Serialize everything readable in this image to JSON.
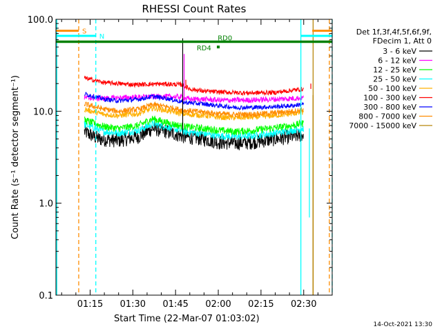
{
  "chart_data": {
    "type": "line",
    "title": "RHESSI Count Rates",
    "xlabel": "Start Time (22-Mar-07 01:03:02)",
    "ylabel": "Count Rate (s⁻¹ detector segment⁻¹)",
    "y_scale": "log",
    "ylim": [
      0.1,
      100
    ],
    "xlim": [
      "01:03",
      "02:40"
    ],
    "y_ticks": [
      {
        "value": 0.1,
        "label": "0.1"
      },
      {
        "value": 1.0,
        "label": "1.0"
      },
      {
        "value": 10.0,
        "label": "10.0"
      },
      {
        "value": 100.0,
        "label": "100.0"
      }
    ],
    "x_ticks": [
      {
        "minutes": 75,
        "label": "01:15"
      },
      {
        "minutes": 90,
        "label": "01:30"
      },
      {
        "minutes": 105,
        "label": "01:45"
      },
      {
        "minutes": 120,
        "label": "02:00"
      },
      {
        "minutes": 135,
        "label": "02:15"
      },
      {
        "minutes": 150,
        "label": "02:30"
      }
    ],
    "legend_header": [
      "Det 1f,3f,4f,5f,6f,9f,",
      "FDecim 1, Att 0"
    ],
    "legend_position": "right",
    "timestamp": "14-Oct-2021 13:30",
    "series": [
      {
        "name": "3 - 6 keV",
        "color": "#000000",
        "noise": 0.16,
        "points": [
          [
            73,
            6.0
          ],
          [
            78,
            5.0
          ],
          [
            85,
            4.8
          ],
          [
            92,
            5.3
          ],
          [
            97,
            6.5
          ],
          [
            102,
            6.0
          ],
          [
            108,
            5.3
          ],
          [
            115,
            5.0
          ],
          [
            120,
            4.6
          ],
          [
            126,
            4.5
          ],
          [
            132,
            4.6
          ],
          [
            140,
            5.0
          ],
          [
            146,
            5.3
          ],
          [
            150,
            5.6
          ]
        ]
      },
      {
        "name": "6 - 12 keV",
        "color": "#ff00ff",
        "noise": 0.06,
        "points": [
          [
            73,
            14.0
          ],
          [
            80,
            13.8
          ],
          [
            90,
            14.2
          ],
          [
            100,
            14.5
          ],
          [
            107,
            14.3
          ],
          [
            110,
            13.5
          ],
          [
            115,
            13.5
          ],
          [
            120,
            13.2
          ],
          [
            130,
            13.2
          ],
          [
            140,
            13.5
          ],
          [
            150,
            14.0
          ]
        ]
      },
      {
        "name": "12 - 25 keV",
        "color": "#00ff00",
        "noise": 0.08,
        "points": [
          [
            73,
            8.0
          ],
          [
            80,
            6.8
          ],
          [
            85,
            6.5
          ],
          [
            92,
            7.0
          ],
          [
            97,
            8.3
          ],
          [
            102,
            7.5
          ],
          [
            108,
            6.8
          ],
          [
            115,
            6.5
          ],
          [
            120,
            6.2
          ],
          [
            126,
            6.0
          ],
          [
            132,
            6.2
          ],
          [
            140,
            6.6
          ],
          [
            146,
            7.0
          ],
          [
            150,
            7.4
          ]
        ]
      },
      {
        "name": "25 - 50 keV",
        "color": "#00ffff",
        "noise": 0.08,
        "points": [
          [
            73,
            7.2
          ],
          [
            80,
            6.0
          ],
          [
            85,
            5.8
          ],
          [
            92,
            6.2
          ],
          [
            97,
            7.3
          ],
          [
            102,
            6.8
          ],
          [
            108,
            6.0
          ],
          [
            115,
            5.7
          ],
          [
            120,
            5.4
          ],
          [
            126,
            5.3
          ],
          [
            132,
            5.4
          ],
          [
            140,
            5.8
          ],
          [
            146,
            6.2
          ],
          [
            150,
            6.5
          ]
        ]
      },
      {
        "name": "50 - 100 keV",
        "color": "#ffb000",
        "noise": 0.06,
        "points": [
          [
            73,
            10.5
          ],
          [
            80,
            9.2
          ],
          [
            85,
            9.0
          ],
          [
            92,
            9.4
          ],
          [
            97,
            10.8
          ],
          [
            102,
            10.2
          ],
          [
            108,
            9.3
          ],
          [
            115,
            9.0
          ],
          [
            120,
            8.6
          ],
          [
            126,
            8.5
          ],
          [
            132,
            8.6
          ],
          [
            140,
            9.0
          ],
          [
            146,
            9.4
          ],
          [
            150,
            9.8
          ]
        ]
      },
      {
        "name": "100 - 300 keV",
        "color": "#ff0000",
        "noise": 0.05,
        "points": [
          [
            73,
            23.0
          ],
          [
            80,
            20.5
          ],
          [
            90,
            19.5
          ],
          [
            100,
            19.8
          ],
          [
            107,
            19.5
          ],
          [
            110,
            17.5
          ],
          [
            115,
            16.5
          ],
          [
            120,
            16.2
          ],
          [
            130,
            15.8
          ],
          [
            140,
            16.0
          ],
          [
            150,
            17.5
          ]
        ]
      },
      {
        "name": "300 - 800 keV",
        "color": "#0000ff",
        "noise": 0.05,
        "points": [
          [
            73,
            15.5
          ],
          [
            80,
            13.5
          ],
          [
            85,
            13.0
          ],
          [
            92,
            13.5
          ],
          [
            97,
            14.5
          ],
          [
            102,
            13.8
          ],
          [
            108,
            12.5
          ],
          [
            115,
            12.0
          ],
          [
            120,
            11.5
          ],
          [
            126,
            11.0
          ],
          [
            132,
            11.0
          ],
          [
            140,
            11.2
          ],
          [
            146,
            11.5
          ],
          [
            150,
            12.0
          ]
        ]
      },
      {
        "name": "800 - 7000 keV",
        "color": "#ff8c00",
        "noise": 0.06,
        "points": [
          [
            73,
            12.0
          ],
          [
            80,
            10.5
          ],
          [
            85,
            10.0
          ],
          [
            92,
            10.5
          ],
          [
            97,
            11.8
          ],
          [
            102,
            11.2
          ],
          [
            108,
            10.2
          ],
          [
            115,
            9.8
          ],
          [
            120,
            9.4
          ],
          [
            126,
            9.2
          ],
          [
            132,
            9.3
          ],
          [
            140,
            9.6
          ],
          [
            146,
            10.0
          ],
          [
            150,
            10.4
          ]
        ]
      },
      {
        "name": "7000 - 15000 keV",
        "color": "#b8860b",
        "noise": 0.0,
        "points": []
      }
    ],
    "annotations": [
      {
        "label": "S",
        "color": "#ff8c00",
        "y": 75,
        "segments": [
          [
            63,
            71
          ],
          [
            153,
            160
          ]
        ]
      },
      {
        "label": "N",
        "color": "#00ffff",
        "y": 66,
        "segments": [
          [
            63,
            77
          ],
          [
            149,
            160
          ]
        ]
      },
      {
        "label": "RD0",
        "color": "#008000",
        "y": 57,
        "segments": [
          [
            63,
            160
          ]
        ]
      },
      {
        "label": "RD4",
        "color": "#008000",
        "y": 50,
        "segments": [
          [
            119.5,
            120.5
          ]
        ]
      }
    ],
    "vertical_markers": [
      {
        "minutes": 71,
        "color": "#ff8c00",
        "style": "dashed"
      },
      {
        "minutes": 77,
        "color": "#00ffff",
        "style": "dashed"
      },
      {
        "minutes": 63.3,
        "color": "#00ffff",
        "style": "solid"
      },
      {
        "minutes": 149,
        "color": "#00ffff",
        "style": "solid"
      },
      {
        "minutes": 153.3,
        "color": "#b8860b",
        "style": "solid"
      },
      {
        "minutes": 159,
        "color": "#ff8c00",
        "style": "dashed"
      },
      {
        "minutes": 160,
        "color": "#00ffff",
        "style": "dashed"
      }
    ],
    "spikes": [
      {
        "minutes": 107.5,
        "value": 62,
        "color": "#000000"
      },
      {
        "minutes": 108.0,
        "value": 42,
        "color": "#ff00ff"
      },
      {
        "minutes": 108.6,
        "value": 22,
        "color": "#ff0000"
      },
      {
        "minutes": 152.0,
        "value": 0.7,
        "color": "#00ffff"
      },
      {
        "minutes": 152.5,
        "value": 20,
        "color": "#ff0000"
      }
    ],
    "tail_drops": [
      {
        "minutes": 153.3,
        "from": 15,
        "to": 0.1,
        "color": "#b8860b"
      }
    ]
  }
}
